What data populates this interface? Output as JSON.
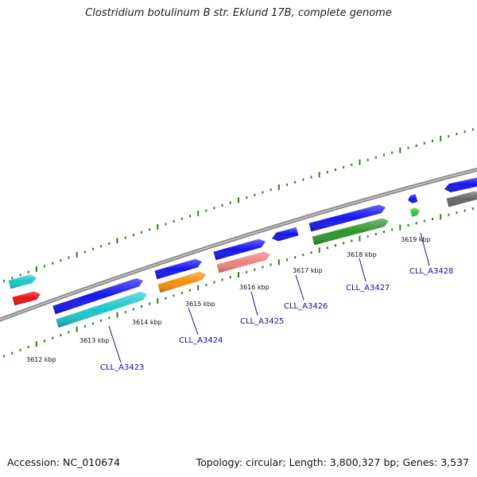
{
  "title": "Clostridium botulinum B str. Eklund 17B, complete genome",
  "footer": {
    "accession": "Accession: NC_010674",
    "topology": "Topology: circular; Length: 3,800,327 bp; Genes: 3,537"
  },
  "colors": {
    "backbone": "#8c8c8c",
    "tick": "#2f7d1b",
    "label": "#1010a0",
    "cds_forward": "#1414ee",
    "cyan": "#19c6cb",
    "red": "#e81010",
    "orange": "#f58c0a",
    "pink": "#ee8080",
    "green": "#2c962c",
    "light_green": "#35c83b",
    "gray": "#666666"
  },
  "tick_labels": [
    "3612 kbp",
    "3613 kbp",
    "3614 kbp",
    "3615 kbp",
    "3616 kbp",
    "3617 kbp",
    "3618 kbp",
    "3619 kbp"
  ],
  "gene_labels": [
    "CLL_A3423",
    "CLL_A3424",
    "CLL_A3425",
    "CLL_A3426",
    "CLL_A3427",
    "CLL_A3428"
  ]
}
